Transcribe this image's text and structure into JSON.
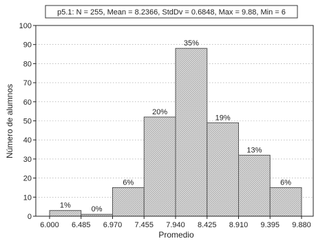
{
  "chart_data": {
    "type": "bar",
    "title": "p5.1:  N = 255, Mean = 8.2366, StdDv = 0.6848, Max = 9.88, Min = 6",
    "xlabel": "Promedio",
    "ylabel": "Número de alumnos",
    "x_ticks": [
      "6.000",
      "6.485",
      "6.970",
      "7.455",
      "7.940",
      "8.425",
      "8.910",
      "9.395",
      "9.880"
    ],
    "y_ticks": [
      0,
      10,
      20,
      30,
      40,
      50,
      60,
      70,
      80,
      90,
      100
    ],
    "ylim": [
      0,
      100
    ],
    "grid": true,
    "bar_fill": "#d4d4d4",
    "bar_stroke": "#555555",
    "bins": [
      {
        "from": "6.000",
        "to": "6.485",
        "value": 3,
        "label": "1%"
      },
      {
        "from": "6.485",
        "to": "6.970",
        "value": 1,
        "label": "0%"
      },
      {
        "from": "6.970",
        "to": "7.455",
        "value": 15,
        "label": "6%"
      },
      {
        "from": "7.455",
        "to": "7.940",
        "value": 52,
        "label": "20%"
      },
      {
        "from": "7.940",
        "to": "8.425",
        "value": 88,
        "label": "35%"
      },
      {
        "from": "8.425",
        "to": "8.910",
        "value": 49,
        "label": "19%"
      },
      {
        "from": "8.910",
        "to": "9.395",
        "value": 32,
        "label": "13%"
      },
      {
        "from": "9.395",
        "to": "9.880",
        "value": 15,
        "label": "6%"
      }
    ]
  }
}
